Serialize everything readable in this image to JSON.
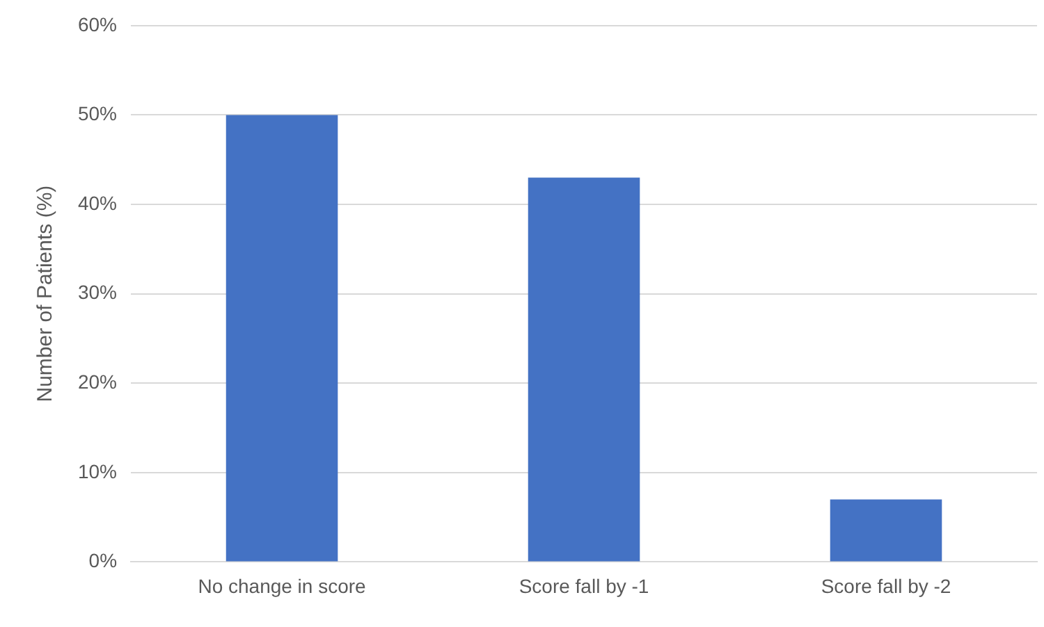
{
  "chart_data": {
    "type": "bar",
    "ylabel": "Number of Patients (%)",
    "categories": [
      "No change in score",
      "Score fall by -1",
      "Score fall by -2"
    ],
    "values": [
      50,
      43,
      7
    ],
    "color": "#4472c4",
    "ylim": [
      0,
      60
    ],
    "yticks": [
      {
        "value": 0,
        "label": "0%"
      },
      {
        "value": 10,
        "label": "10%"
      },
      {
        "value": 20,
        "label": "20%"
      },
      {
        "value": 30,
        "label": "30%"
      },
      {
        "value": 40,
        "label": "40%"
      },
      {
        "value": 50,
        "label": "50%"
      },
      {
        "value": 60,
        "label": "60%"
      }
    ],
    "grid": "y",
    "legend": false
  }
}
